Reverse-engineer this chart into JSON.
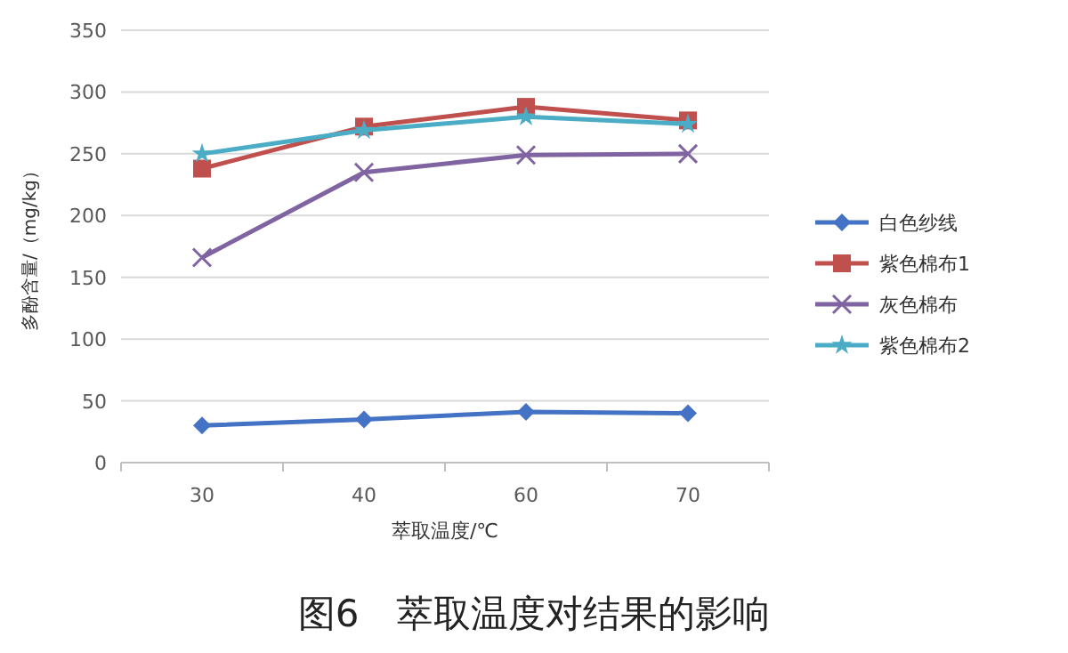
{
  "chart_data": {
    "type": "line",
    "title": "图6　萃取温度对结果的影响",
    "xlabel": "萃取温度/℃",
    "ylabel": "多酚含量/（mg/kg）",
    "categories": [
      "30",
      "40",
      "60",
      "70"
    ],
    "series": [
      {
        "name": "白色纱线",
        "color": "#4472c4",
        "marker": "diamond",
        "values": [
          30,
          35,
          41,
          40
        ]
      },
      {
        "name": "紫色棉布1",
        "color": "#c0504d",
        "marker": "square",
        "values": [
          238,
          272,
          288,
          277
        ]
      },
      {
        "name": "灰色棉布",
        "color": "#8064a2",
        "marker": "cross",
        "values": [
          166,
          235,
          249,
          250
        ]
      },
      {
        "name": "紫色棉布2",
        "color": "#4bacc6",
        "marker": "star",
        "values": [
          250,
          269,
          280,
          274
        ]
      }
    ],
    "ylim": [
      0,
      350
    ],
    "yticks": [
      0,
      50,
      100,
      150,
      200,
      250,
      300,
      350
    ],
    "grid": "y",
    "legend": "right"
  }
}
